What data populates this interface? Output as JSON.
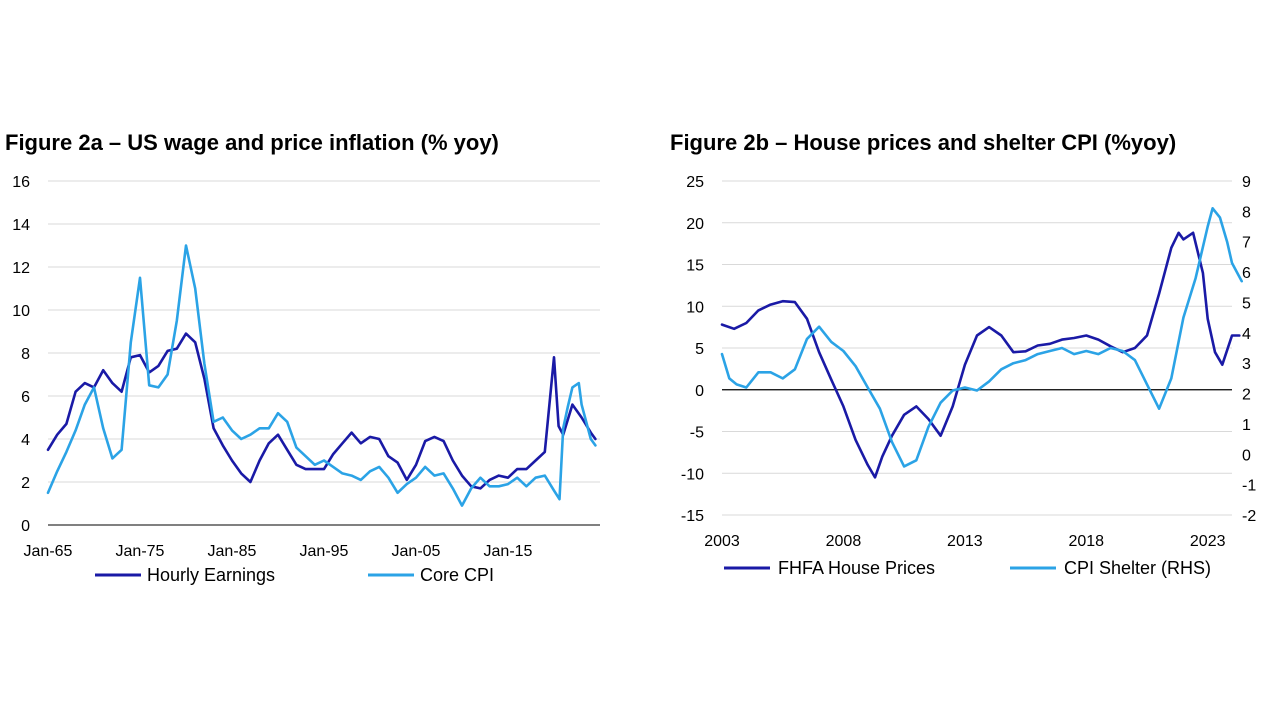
{
  "chart_data": [
    {
      "type": "line",
      "title": "Figure 2a – US wage and price inflation (% yoy)",
      "ylim": [
        0,
        16
      ],
      "yticks": [
        "0",
        "2",
        "4",
        "6",
        "8",
        "10",
        "12",
        "14",
        "16"
      ],
      "xlim": [
        1965,
        2025
      ],
      "xticks": [
        {
          "v": 1965,
          "label": "Jan-65"
        },
        {
          "v": 1975,
          "label": "Jan-75"
        },
        {
          "v": 1985,
          "label": "Jan-85"
        },
        {
          "v": 1995,
          "label": "Jan-95"
        },
        {
          "v": 2005,
          "label": "Jan-05"
        },
        {
          "v": 2015,
          "label": "Jan-15"
        }
      ],
      "grid": true,
      "legend_position": "bottom",
      "series": [
        {
          "name": "Hourly Earnings",
          "color": "#1a1aa6",
          "points": [
            [
              1965,
              3.5
            ],
            [
              1966,
              4.2
            ],
            [
              1967,
              4.7
            ],
            [
              1968,
              6.2
            ],
            [
              1969,
              6.6
            ],
            [
              1970,
              6.4
            ],
            [
              1971,
              7.2
            ],
            [
              1972,
              6.6
            ],
            [
              1973,
              6.2
            ],
            [
              1974,
              7.8
            ],
            [
              1975,
              7.9
            ],
            [
              1976,
              7.1
            ],
            [
              1977,
              7.4
            ],
            [
              1978,
              8.1
            ],
            [
              1979,
              8.2
            ],
            [
              1980,
              8.9
            ],
            [
              1981,
              8.5
            ],
            [
              1982,
              6.8
            ],
            [
              1983,
              4.5
            ],
            [
              1984,
              3.7
            ],
            [
              1985,
              3.0
            ],
            [
              1986,
              2.4
            ],
            [
              1987,
              2.0
            ],
            [
              1988,
              3.0
            ],
            [
              1989,
              3.8
            ],
            [
              1990,
              4.2
            ],
            [
              1991,
              3.5
            ],
            [
              1992,
              2.8
            ],
            [
              1993,
              2.6
            ],
            [
              1994,
              2.6
            ],
            [
              1995,
              2.6
            ],
            [
              1996,
              3.3
            ],
            [
              1997,
              3.8
            ],
            [
              1998,
              4.3
            ],
            [
              1999,
              3.8
            ],
            [
              2000,
              4.1
            ],
            [
              2001,
              4.0
            ],
            [
              2002,
              3.2
            ],
            [
              2003,
              2.9
            ],
            [
              2004,
              2.1
            ],
            [
              2005,
              2.8
            ],
            [
              2006,
              3.9
            ],
            [
              2007,
              4.1
            ],
            [
              2008,
              3.9
            ],
            [
              2009,
              3.0
            ],
            [
              2010,
              2.3
            ],
            [
              2011,
              1.8
            ],
            [
              2012,
              1.7
            ],
            [
              2013,
              2.1
            ],
            [
              2014,
              2.3
            ],
            [
              2015,
              2.2
            ],
            [
              2016,
              2.6
            ],
            [
              2017,
              2.6
            ],
            [
              2018,
              3.0
            ],
            [
              2019,
              3.4
            ],
            [
              2020,
              7.8
            ],
            [
              2020.5,
              4.6
            ],
            [
              2021,
              4.2
            ],
            [
              2022,
              5.6
            ],
            [
              2023,
              5.0
            ],
            [
              2024,
              4.3
            ],
            [
              2024.5,
              4.0
            ]
          ]
        },
        {
          "name": "Core CPI",
          "color": "#2ba3e6",
          "points": [
            [
              1965,
              1.5
            ],
            [
              1966,
              2.5
            ],
            [
              1967,
              3.4
            ],
            [
              1968,
              4.4
            ],
            [
              1969,
              5.6
            ],
            [
              1970,
              6.4
            ],
            [
              1971,
              4.5
            ],
            [
              1972,
              3.1
            ],
            [
              1973,
              3.5
            ],
            [
              1974,
              8.5
            ],
            [
              1975,
              11.5
            ],
            [
              1976,
              6.5
            ],
            [
              1977,
              6.4
            ],
            [
              1978,
              7.0
            ],
            [
              1979,
              9.5
            ],
            [
              1980,
              13.0
            ],
            [
              1981,
              11.0
            ],
            [
              1982,
              7.5
            ],
            [
              1983,
              4.8
            ],
            [
              1984,
              5.0
            ],
            [
              1985,
              4.4
            ],
            [
              1986,
              4.0
            ],
            [
              1987,
              4.2
            ],
            [
              1988,
              4.5
            ],
            [
              1989,
              4.5
            ],
            [
              1990,
              5.2
            ],
            [
              1991,
              4.8
            ],
            [
              1992,
              3.6
            ],
            [
              1993,
              3.2
            ],
            [
              1994,
              2.8
            ],
            [
              1995,
              3.0
            ],
            [
              1996,
              2.7
            ],
            [
              1997,
              2.4
            ],
            [
              1998,
              2.3
            ],
            [
              1999,
              2.1
            ],
            [
              2000,
              2.5
            ],
            [
              2001,
              2.7
            ],
            [
              2002,
              2.2
            ],
            [
              2003,
              1.5
            ],
            [
              2004,
              1.9
            ],
            [
              2005,
              2.2
            ],
            [
              2006,
              2.7
            ],
            [
              2007,
              2.3
            ],
            [
              2008,
              2.4
            ],
            [
              2009,
              1.7
            ],
            [
              2010,
              0.9
            ],
            [
              2011,
              1.7
            ],
            [
              2012,
              2.2
            ],
            [
              2013,
              1.8
            ],
            [
              2014,
              1.8
            ],
            [
              2015,
              1.9
            ],
            [
              2016,
              2.2
            ],
            [
              2017,
              1.8
            ],
            [
              2018,
              2.2
            ],
            [
              2019,
              2.3
            ],
            [
              2020,
              1.6
            ],
            [
              2020.6,
              1.2
            ],
            [
              2021,
              4.5
            ],
            [
              2021.5,
              5.5
            ],
            [
              2022,
              6.4
            ],
            [
              2022.7,
              6.6
            ],
            [
              2023,
              5.6
            ],
            [
              2024,
              4.0
            ],
            [
              2024.5,
              3.7
            ]
          ]
        }
      ]
    },
    {
      "type": "line",
      "title": "Figure 2b – House prices and shelter CPI (%yoy)",
      "ylim": [
        -15,
        25
      ],
      "y2lim": [
        -2,
        9
      ],
      "yticks": [
        "-15",
        "-10",
        "-5",
        "0",
        "5",
        "10",
        "15",
        "20",
        "25"
      ],
      "y2ticks": [
        "-2",
        "-1",
        "0",
        "1",
        "2",
        "3",
        "4",
        "5",
        "6",
        "7",
        "8",
        "9"
      ],
      "xlim": [
        2003,
        2024
      ],
      "xticks": [
        {
          "v": 2003,
          "label": "2003"
        },
        {
          "v": 2008,
          "label": "2008"
        },
        {
          "v": 2013,
          "label": "2013"
        },
        {
          "v": 2018,
          "label": "2018"
        },
        {
          "v": 2023,
          "label": "2023"
        }
      ],
      "grid": true,
      "legend_position": "bottom",
      "series": [
        {
          "name": "FHFA House Prices",
          "axis": "left",
          "color": "#1a1aa6",
          "points": [
            [
              2003,
              7.8
            ],
            [
              2003.5,
              7.3
            ],
            [
              2004,
              8.0
            ],
            [
              2004.5,
              9.5
            ],
            [
              2005,
              10.2
            ],
            [
              2005.5,
              10.6
            ],
            [
              2006,
              10.5
            ],
            [
              2006.5,
              8.5
            ],
            [
              2007,
              4.5
            ],
            [
              2007.5,
              1.2
            ],
            [
              2008,
              -2.0
            ],
            [
              2008.5,
              -6.0
            ],
            [
              2009,
              -9.0
            ],
            [
              2009.3,
              -10.5
            ],
            [
              2009.6,
              -8.0
            ],
            [
              2010,
              -5.5
            ],
            [
              2010.5,
              -3.0
            ],
            [
              2011,
              -2.0
            ],
            [
              2011.5,
              -3.5
            ],
            [
              2012,
              -5.5
            ],
            [
              2012.5,
              -2.0
            ],
            [
              2013,
              3.0
            ],
            [
              2013.5,
              6.5
            ],
            [
              2014,
              7.5
            ],
            [
              2014.5,
              6.5
            ],
            [
              2015,
              4.5
            ],
            [
              2015.5,
              4.6
            ],
            [
              2016,
              5.3
            ],
            [
              2016.5,
              5.5
            ],
            [
              2017,
              6.0
            ],
            [
              2017.5,
              6.2
            ],
            [
              2018,
              6.5
            ],
            [
              2018.5,
              6.0
            ],
            [
              2019,
              5.2
            ],
            [
              2019.5,
              4.5
            ],
            [
              2020,
              5.0
            ],
            [
              2020.5,
              6.5
            ],
            [
              2021,
              11.5
            ],
            [
              2021.5,
              17.0
            ],
            [
              2021.8,
              18.8
            ],
            [
              2022,
              18.0
            ],
            [
              2022.4,
              18.8
            ],
            [
              2022.8,
              14.0
            ],
            [
              2023,
              8.5
            ],
            [
              2023.3,
              4.5
            ],
            [
              2023.6,
              3.0
            ],
            [
              2024,
              6.5
            ],
            [
              2024.3,
              6.5
            ]
          ]
        },
        {
          "name": "CPI Shelter (RHS)",
          "axis": "right",
          "color": "#2ba3e6",
          "points": [
            [
              2003,
              3.3
            ],
            [
              2003.3,
              2.5
            ],
            [
              2003.6,
              2.3
            ],
            [
              2004,
              2.2
            ],
            [
              2004.5,
              2.7
            ],
            [
              2005,
              2.7
            ],
            [
              2005.5,
              2.5
            ],
            [
              2006,
              2.8
            ],
            [
              2006.5,
              3.8
            ],
            [
              2007,
              4.2
            ],
            [
              2007.5,
              3.7
            ],
            [
              2008,
              3.4
            ],
            [
              2008.5,
              2.9
            ],
            [
              2009,
              2.2
            ],
            [
              2009.5,
              1.5
            ],
            [
              2010,
              0.4
            ],
            [
              2010.5,
              -0.4
            ],
            [
              2011,
              -0.2
            ],
            [
              2011.5,
              0.9
            ],
            [
              2012,
              1.7
            ],
            [
              2012.5,
              2.1
            ],
            [
              2013,
              2.2
            ],
            [
              2013.5,
              2.1
            ],
            [
              2014,
              2.4
            ],
            [
              2014.5,
              2.8
            ],
            [
              2015,
              3.0
            ],
            [
              2015.5,
              3.1
            ],
            [
              2016,
              3.3
            ],
            [
              2016.5,
              3.4
            ],
            [
              2017,
              3.5
            ],
            [
              2017.5,
              3.3
            ],
            [
              2018,
              3.4
            ],
            [
              2018.5,
              3.3
            ],
            [
              2019,
              3.5
            ],
            [
              2019.5,
              3.4
            ],
            [
              2020,
              3.1
            ],
            [
              2020.5,
              2.3
            ],
            [
              2021,
              1.5
            ],
            [
              2021.5,
              2.5
            ],
            [
              2022,
              4.5
            ],
            [
              2022.5,
              5.8
            ],
            [
              2023,
              7.5
            ],
            [
              2023.2,
              8.1
            ],
            [
              2023.5,
              7.8
            ],
            [
              2023.8,
              7.0
            ],
            [
              2024,
              6.3
            ],
            [
              2024.4,
              5.7
            ]
          ]
        }
      ]
    }
  ]
}
